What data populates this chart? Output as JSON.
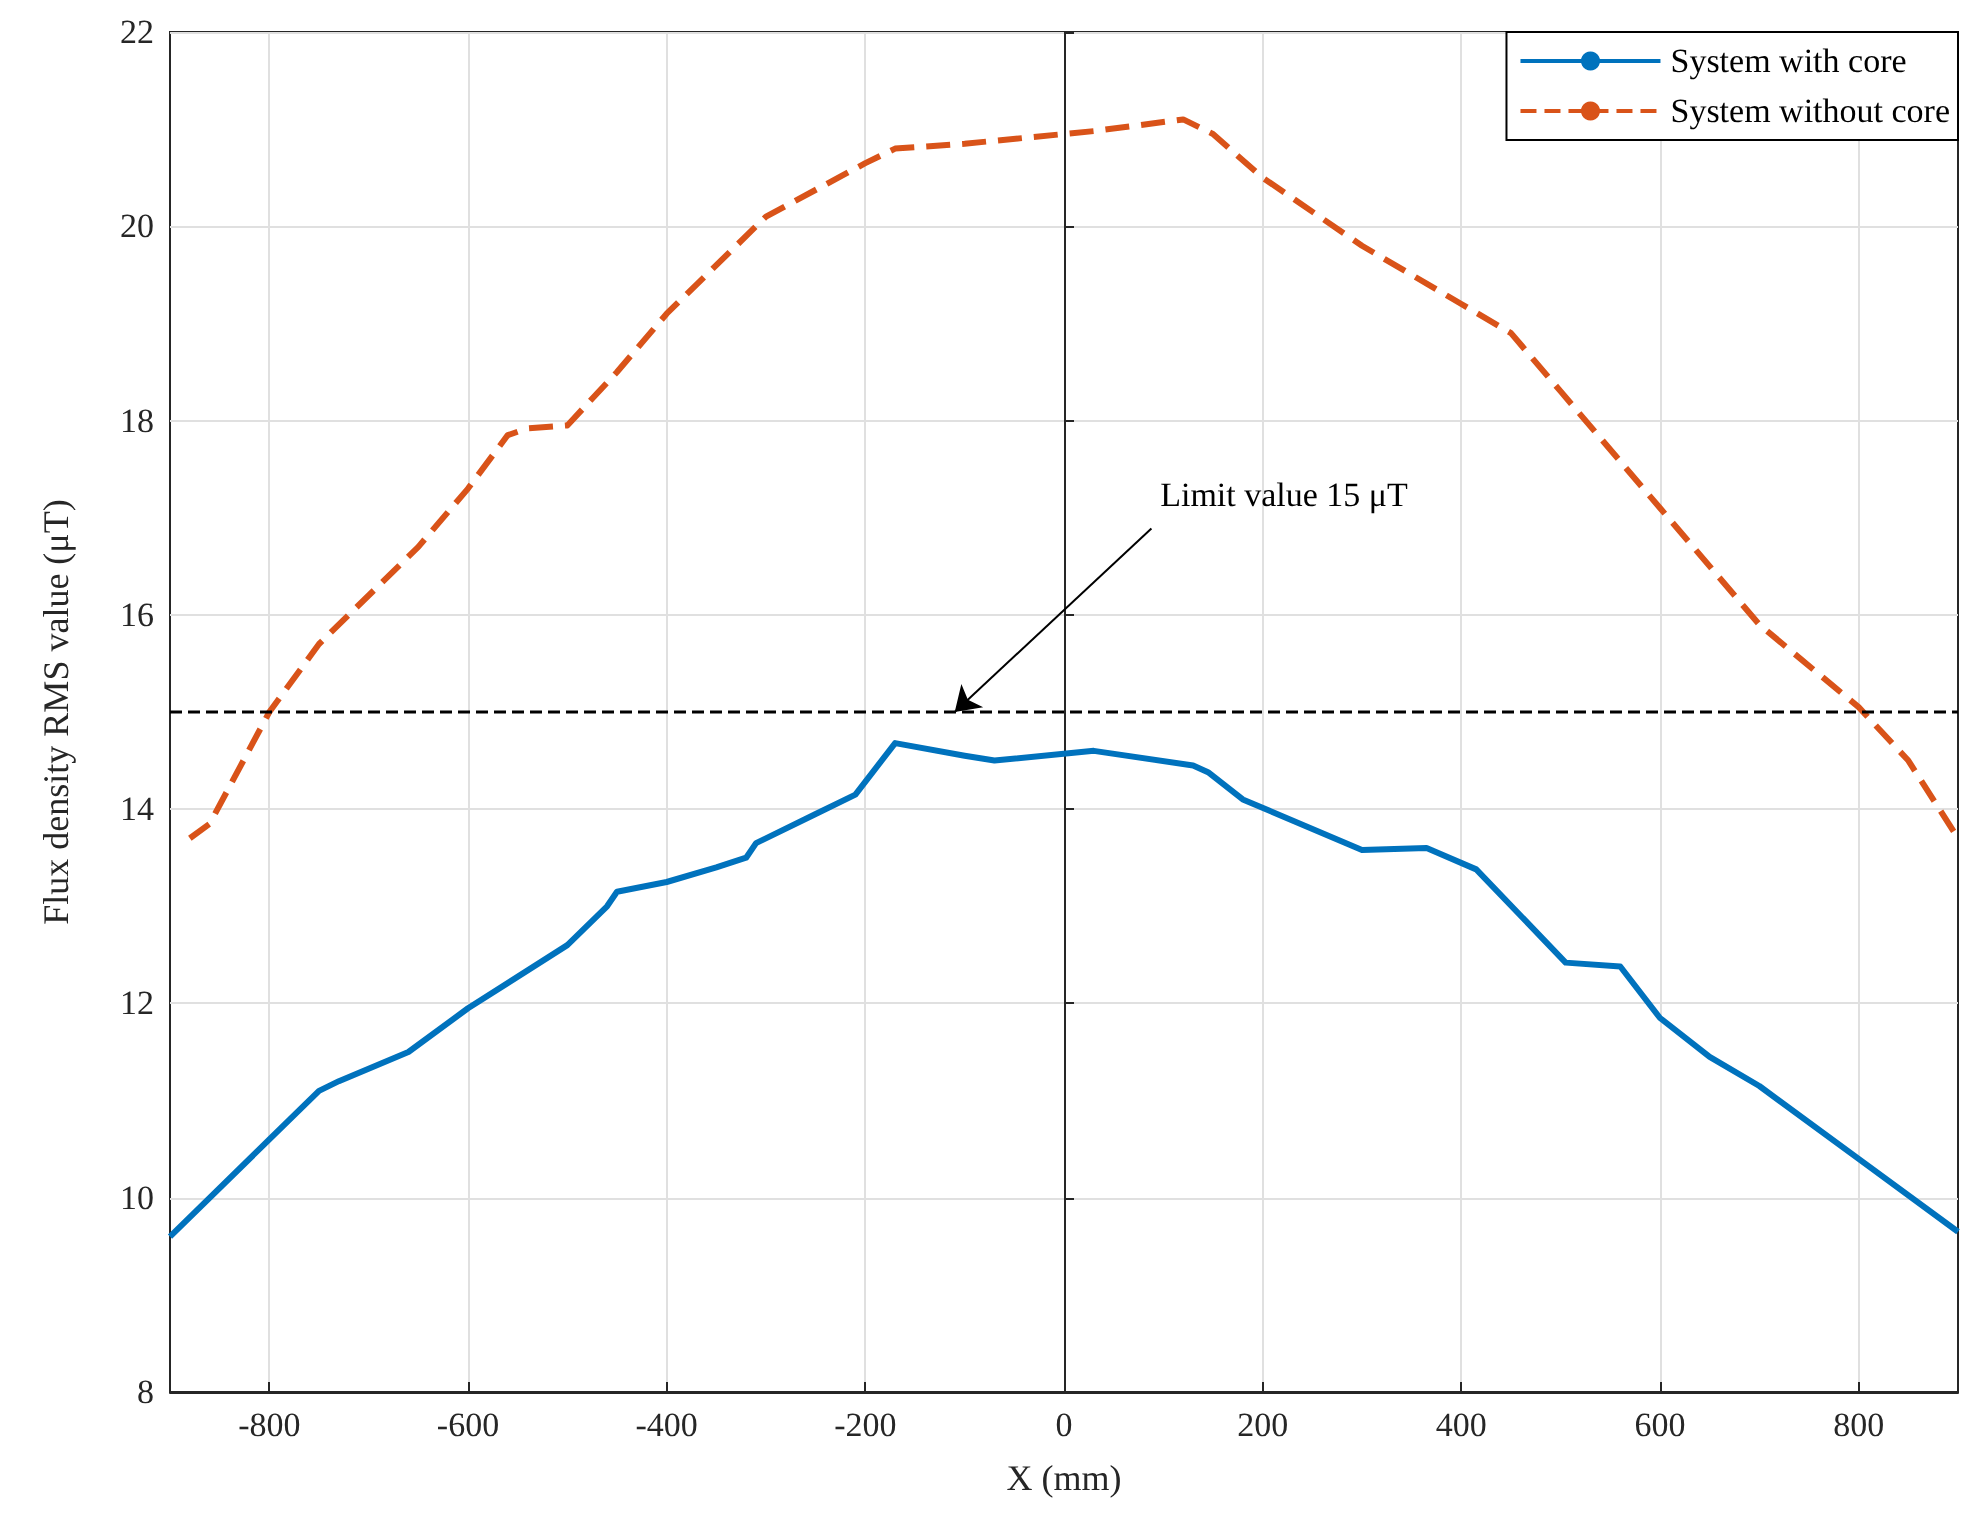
{
  "chart_data": {
    "type": "line",
    "xlabel": "X (mm)",
    "ylabel": "Flux density RMS value (μT)",
    "xlim": [
      -900,
      900
    ],
    "xticks": [
      -800,
      -600,
      -400,
      -200,
      0,
      200,
      400,
      600,
      800
    ],
    "ylim": [
      8,
      22
    ],
    "yticks": [
      8,
      10,
      12,
      14,
      16,
      18,
      20,
      22
    ],
    "grid": true,
    "legend": "top right",
    "marker": "none",
    "series": [
      {
        "name": "System with core",
        "color": "#0072bd",
        "line_style": "solid",
        "x": [
          -900,
          -800,
          -750,
          -730,
          -660,
          -600,
          -500,
          -460,
          -450,
          -400,
          -350,
          -320,
          -310,
          -250,
          -210,
          -170,
          -100,
          -70,
          30,
          130,
          145,
          180,
          300,
          365,
          415,
          505,
          560,
          600,
          650,
          700,
          800,
          900
        ],
        "values": [
          9.6,
          10.6,
          11.1,
          11.2,
          11.5,
          11.95,
          12.6,
          13.0,
          13.15,
          13.25,
          13.4,
          13.5,
          13.65,
          13.95,
          14.15,
          14.68,
          14.55,
          14.5,
          14.6,
          14.45,
          14.38,
          14.1,
          13.58,
          13.6,
          13.38,
          12.42,
          12.38,
          11.85,
          11.45,
          11.15,
          10.4,
          9.65
        ]
      },
      {
        "name": "System without core",
        "color": "#d95319",
        "line_style": "dashed",
        "x": [
          -880,
          -860,
          -800,
          -750,
          -650,
          -600,
          -560,
          -540,
          -500,
          -450,
          -400,
          -300,
          -200,
          -170,
          -100,
          0,
          30,
          120,
          150,
          200,
          300,
          400,
          450,
          500,
          600,
          700,
          800,
          850,
          900
        ],
        "values": [
          13.7,
          13.85,
          15.0,
          15.7,
          16.7,
          17.3,
          17.85,
          17.92,
          17.95,
          18.5,
          19.1,
          20.1,
          20.65,
          20.8,
          20.85,
          20.95,
          20.98,
          21.1,
          20.95,
          20.5,
          19.8,
          19.2,
          18.9,
          18.3,
          17.1,
          15.9,
          15.05,
          14.5,
          13.7
        ]
      }
    ],
    "ref_lines": [
      {
        "axis": "y",
        "value": 15,
        "color": "#000000",
        "line_style": "dashed"
      }
    ],
    "annotations": [
      {
        "text": "Limit value 15 μT",
        "x": -110,
        "y": 15
      }
    ]
  }
}
